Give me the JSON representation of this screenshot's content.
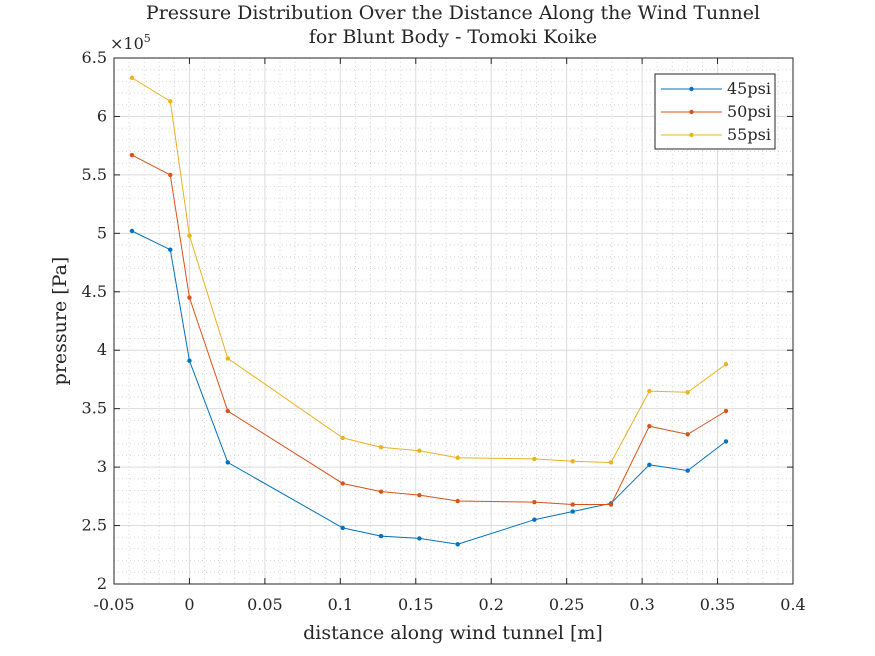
{
  "chart_data": {
    "type": "line",
    "title": "Pressure Distribution Over the Distance Along the Wind Tunnel",
    "subtitle": "for Blunt Body - Tomoki Koike",
    "xlabel": "distance along wind tunnel [m]",
    "ylabel": "pressure [Pa]",
    "y_multiplier_base": "×10",
    "y_multiplier_exponent": "5",
    "xlim": [
      -0.05,
      0.4
    ],
    "ylim": [
      2,
      6.5
    ],
    "x_ticks": [
      -0.05,
      0,
      0.05,
      0.1,
      0.15,
      0.2,
      0.25,
      0.3,
      0.35,
      0.4
    ],
    "x_tick_labels": [
      "-0.05",
      "0",
      "0.05",
      "0.1",
      "0.15",
      "0.2",
      "0.25",
      "0.3",
      "0.35",
      "0.4"
    ],
    "y_ticks": [
      2,
      2.5,
      3,
      3.5,
      4,
      4.5,
      5,
      5.5,
      6,
      6.5
    ],
    "y_tick_labels": [
      "2",
      "2.5",
      "3",
      "3.5",
      "4",
      "4.5",
      "5",
      "5.5",
      "6",
      "6.5"
    ],
    "grid": true,
    "minor_grid": true,
    "legend_position": "top-right",
    "x": [
      -0.0381,
      -0.0127,
      0,
      0.0254,
      0.1016,
      0.127,
      0.1524,
      0.1778,
      0.2286,
      0.254,
      0.2794,
      0.3048,
      0.3302,
      0.3556
    ],
    "series": [
      {
        "name": "45psi",
        "color": "#0072BD",
        "values": [
          5.02,
          4.86,
          3.91,
          3.04,
          2.48,
          2.41,
          2.39,
          2.34,
          2.55,
          2.62,
          2.69,
          3.02,
          2.97,
          3.22
        ]
      },
      {
        "name": "50psi",
        "color": "#D95319",
        "values": [
          5.67,
          5.5,
          4.45,
          3.48,
          2.86,
          2.79,
          2.76,
          2.71,
          2.7,
          2.68,
          2.68,
          3.35,
          3.28,
          3.48
        ]
      },
      {
        "name": "55psi",
        "color": "#EDB120",
        "values": [
          6.33,
          6.13,
          4.98,
          3.93,
          3.25,
          3.17,
          3.14,
          3.08,
          3.07,
          3.05,
          3.04,
          3.65,
          3.64,
          3.88
        ]
      }
    ]
  }
}
